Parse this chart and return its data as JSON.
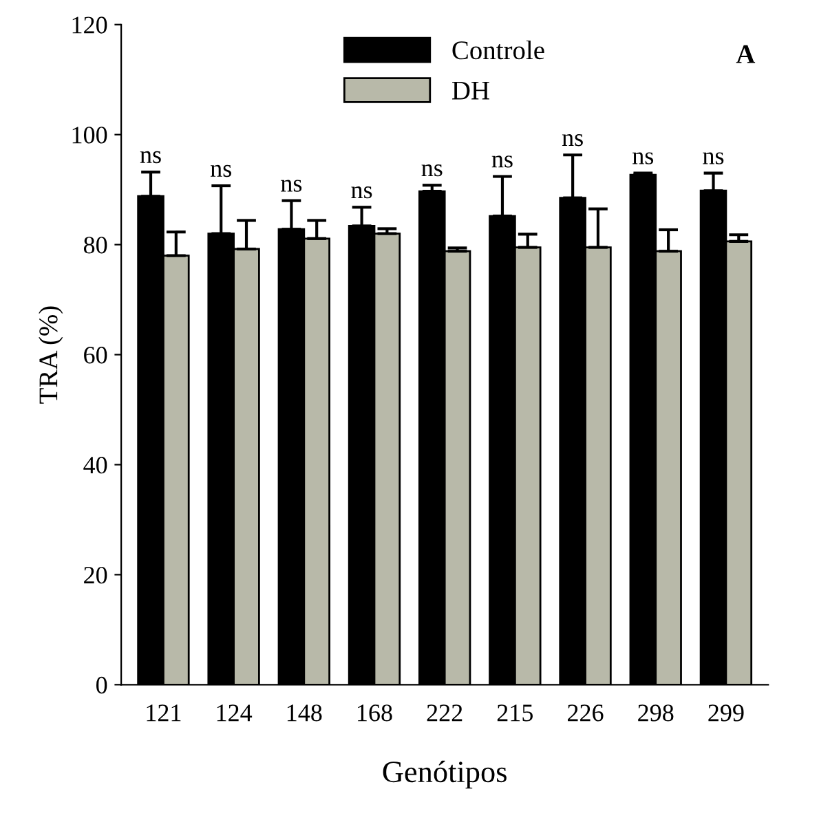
{
  "chart_data": {
    "type": "bar",
    "xlabel": "Genótipos",
    "ylabel": "TRA (%)",
    "categories": [
      "121",
      "124",
      "148",
      "168",
      "222",
      "215",
      "226",
      "298",
      "299"
    ],
    "series": [
      {
        "name": "Controle",
        "color": "#000000",
        "values": [
          88.8,
          82.0,
          82.8,
          83.4,
          89.7,
          85.2,
          88.5,
          92.7,
          89.8
        ],
        "errors": [
          [
            88.8,
            93.2
          ],
          [
            82.0,
            90.7
          ],
          [
            82.8,
            88.0
          ],
          [
            83.4,
            86.8
          ],
          [
            89.7,
            90.8
          ],
          [
            85.2,
            92.4
          ],
          [
            88.5,
            96.3
          ],
          [
            92.7,
            93.0
          ],
          [
            89.8,
            93.0
          ]
        ]
      },
      {
        "name": "DH",
        "color": "#b8b9a9",
        "values": [
          78.0,
          79.2,
          81.1,
          82.0,
          78.8,
          79.5,
          79.5,
          78.8,
          80.6
        ],
        "errors": [
          [
            78.0,
            82.3
          ],
          [
            79.2,
            84.4
          ],
          [
            81.1,
            84.4
          ],
          [
            82.0,
            82.9
          ],
          [
            78.8,
            79.4
          ],
          [
            79.5,
            81.9
          ],
          [
            79.5,
            86.5
          ],
          [
            78.8,
            82.7
          ],
          [
            80.6,
            81.8
          ]
        ]
      }
    ],
    "ylim": [
      0,
      120
    ],
    "yticks": [
      0,
      20,
      40,
      60,
      80,
      100,
      120
    ],
    "grid": false,
    "legend": "top",
    "annotations": [
      "A",
      {
        "text": "ns",
        "x": "121",
        "y": 93.2
      },
      {
        "text": "ns",
        "x": "124",
        "y": 90.7
      },
      {
        "text": "ns",
        "x": "148",
        "y": 88.0
      },
      {
        "text": "ns",
        "x": "168",
        "y": 86.8
      },
      {
        "text": "ns",
        "x": "222",
        "y": 90.8
      },
      {
        "text": "ns",
        "x": "215",
        "y": 92.4
      },
      {
        "text": "ns",
        "x": "226",
        "y": 96.3
      },
      {
        "text": "ns",
        "x": "298",
        "y": 93.0
      },
      {
        "text": "ns",
        "x": "299",
        "y": 93.0
      }
    ]
  }
}
